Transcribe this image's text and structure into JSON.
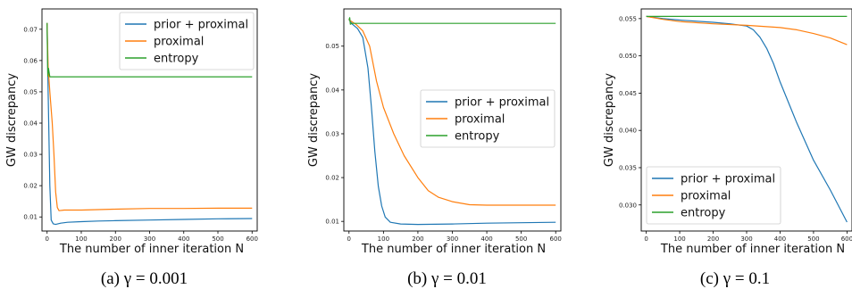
{
  "chart_data": [
    {
      "type": "line",
      "caption": "(a) γ = 0.001",
      "xlabel": "The number of inner iteration N",
      "ylabel": "GW discrepancy",
      "xlim": [
        -15,
        615
      ],
      "ylim": [
        0.0055,
        0.0765
      ],
      "xticks": [
        0,
        100,
        200,
        300,
        400,
        500,
        600
      ],
      "yticks": [
        0.01,
        0.02,
        0.03,
        0.04,
        0.05,
        0.06,
        0.07
      ],
      "ytick_labels": [
        "0.01",
        "0.02",
        "0.03",
        "0.04",
        "0.05",
        "0.06",
        "0.07"
      ],
      "legend_loc": "upper-right",
      "series": [
        {
          "name": "prior + proximal",
          "color": "#1f77b4",
          "x": [
            0,
            3,
            8,
            12,
            18,
            25,
            40,
            60,
            100,
            150,
            200,
            300,
            400,
            500,
            600
          ],
          "y": [
            0.072,
            0.05,
            0.02,
            0.009,
            0.0078,
            0.0076,
            0.008,
            0.0083,
            0.0085,
            0.0087,
            0.0088,
            0.009,
            0.0092,
            0.0094,
            0.0095
          ]
        },
        {
          "name": "proximal",
          "color": "#ff7f0e",
          "x": [
            0,
            3,
            8,
            15,
            20,
            25,
            30,
            35,
            50,
            100,
            200,
            300,
            400,
            500,
            600
          ],
          "y": [
            0.072,
            0.058,
            0.05,
            0.04,
            0.03,
            0.018,
            0.013,
            0.012,
            0.0122,
            0.0122,
            0.0125,
            0.0127,
            0.0127,
            0.0128,
            0.0128
          ]
        },
        {
          "name": "entropy",
          "color": "#2ca02c",
          "x": [
            0,
            2,
            4,
            8,
            600
          ],
          "y": [
            0.072,
            0.055,
            0.0575,
            0.0548,
            0.0548
          ]
        }
      ]
    },
    {
      "type": "line",
      "caption": "(b) γ = 0.01",
      "xlabel": "The number of inner iteration N",
      "ylabel": "GW discrepancy",
      "xlim": [
        -15,
        615
      ],
      "ylim": [
        0.0078,
        0.0585
      ],
      "xticks": [
        0,
        100,
        200,
        300,
        400,
        500,
        600
      ],
      "yticks": [
        0.01,
        0.02,
        0.03,
        0.04,
        0.05
      ],
      "ytick_labels": [
        "0.01",
        "0.02",
        "0.03",
        "0.04",
        "0.05"
      ],
      "legend_loc": "center-right",
      "series": [
        {
          "name": "prior + proximal",
          "color": "#1f77b4",
          "x": [
            0,
            10,
            25,
            40,
            55,
            65,
            75,
            85,
            95,
            105,
            120,
            150,
            200,
            300,
            400,
            500,
            600
          ],
          "y": [
            0.056,
            0.055,
            0.054,
            0.052,
            0.045,
            0.036,
            0.026,
            0.018,
            0.0135,
            0.011,
            0.0098,
            0.0094,
            0.0093,
            0.0094,
            0.0096,
            0.0097,
            0.0098
          ]
        },
        {
          "name": "proximal",
          "color": "#ff7f0e",
          "x": [
            0,
            20,
            40,
            60,
            80,
            100,
            130,
            160,
            200,
            230,
            260,
            300,
            350,
            400,
            500,
            600
          ],
          "y": [
            0.056,
            0.055,
            0.0535,
            0.05,
            0.042,
            0.036,
            0.03,
            0.025,
            0.02,
            0.017,
            0.0155,
            0.0145,
            0.0138,
            0.0137,
            0.0137,
            0.0137
          ]
        },
        {
          "name": "entropy",
          "color": "#2ca02c",
          "x": [
            0,
            2,
            4,
            8,
            600
          ],
          "y": [
            0.056,
            0.0565,
            0.055,
            0.0552,
            0.0552
          ]
        }
      ]
    },
    {
      "type": "line",
      "caption": "(c) γ = 0.1",
      "xlabel": "The number of inner iteration N",
      "ylabel": "GW discrepancy",
      "xlim": [
        -15,
        615
      ],
      "ylim": [
        0.0265,
        0.0563
      ],
      "xticks": [
        0,
        100,
        200,
        300,
        400,
        500,
        600
      ],
      "yticks": [
        0.03,
        0.035,
        0.04,
        0.045,
        0.05,
        0.055
      ],
      "ytick_labels": [
        "0.030",
        "0.035",
        "0.040",
        "0.045",
        "0.050",
        "0.055"
      ],
      "legend_loc": "lower-left",
      "series": [
        {
          "name": "prior + proximal",
          "color": "#1f77b4",
          "x": [
            0,
            50,
            100,
            200,
            250,
            300,
            320,
            340,
            360,
            380,
            400,
            450,
            500,
            550,
            600
          ],
          "y": [
            0.0553,
            0.055,
            0.0548,
            0.0545,
            0.0543,
            0.054,
            0.0535,
            0.0525,
            0.051,
            0.049,
            0.0465,
            0.041,
            0.036,
            0.032,
            0.0277
          ]
        },
        {
          "name": "proximal",
          "color": "#ff7f0e",
          "x": [
            0,
            50,
            100,
            200,
            300,
            400,
            450,
            500,
            550,
            600
          ],
          "y": [
            0.0553,
            0.0549,
            0.0546,
            0.0543,
            0.0541,
            0.0538,
            0.0535,
            0.053,
            0.0524,
            0.0515
          ]
        },
        {
          "name": "entropy",
          "color": "#2ca02c",
          "x": [
            0,
            600
          ],
          "y": [
            0.0553,
            0.0553
          ]
        }
      ]
    }
  ]
}
